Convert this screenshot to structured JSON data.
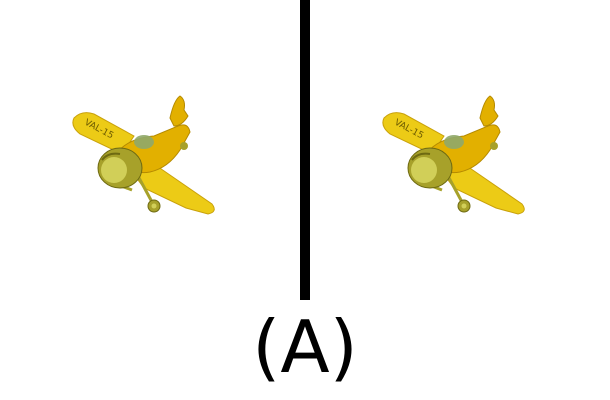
{
  "figure": {
    "caption": "(A)",
    "left_image": {
      "icon": "yellow-toy-plane-icon",
      "tail_text": "VAL-15"
    },
    "right_image": {
      "icon": "yellow-toy-plane-icon",
      "tail_text": "VAL-15"
    },
    "divider_color": "#000000",
    "plane_colors": {
      "body": "#e2b000",
      "wing": "#eccb16",
      "shadow": "#b58a00",
      "propeller": "#a7a12a",
      "propeller_highlight": "#d1cf58",
      "glass": "#8fa86a"
    }
  }
}
